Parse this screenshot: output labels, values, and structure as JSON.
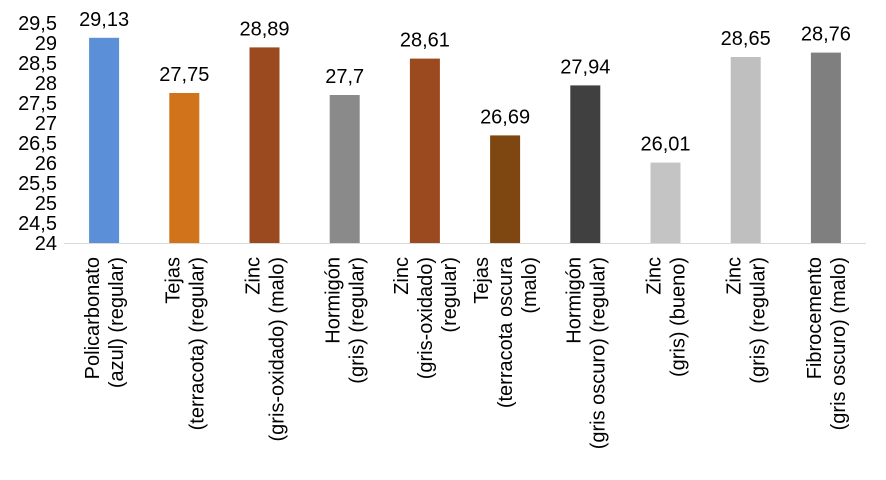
{
  "chart_data": {
    "type": "bar",
    "title": "",
    "xlabel": "",
    "ylabel": "",
    "ylim": [
      24,
      29.5
    ],
    "yticks": [
      "24",
      "24,5",
      "25",
      "25,5",
      "26",
      "26,5",
      "27",
      "27,5",
      "28",
      "28,5",
      "29",
      "29,5"
    ],
    "grid": false,
    "legend": "none",
    "categories": [
      [
        "Policarbonato",
        "(azul) (regular)"
      ],
      [
        "Tejas",
        "(terracota) (regular)"
      ],
      [
        "Zinc",
        "(gris-oxidado) (malo)"
      ],
      [
        "Hormigón",
        "(gris) (regular)"
      ],
      [
        "Zinc",
        "(gris-oxidado)",
        "(regular)"
      ],
      [
        "Tejas",
        "(terracota oscura",
        "(malo)"
      ],
      [
        "Hormigón",
        "(gris oscuro) (regular)"
      ],
      [
        "Zinc",
        "(gris) (bueno)"
      ],
      [
        "Zinc",
        "(gris) (regular)"
      ],
      [
        "Fibrocemento",
        "(gris oscuro) (malo)"
      ]
    ],
    "values": [
      29.13,
      27.75,
      28.89,
      27.7,
      28.61,
      26.69,
      27.94,
      26.01,
      28.65,
      28.76
    ],
    "value_labels": [
      "29,13",
      "27,75",
      "28,89",
      "27,7",
      "28,61",
      "26,69",
      "27,94",
      "26,01",
      "28,65",
      "28,76"
    ],
    "colors": [
      "#5B8FD8",
      "#D0731A",
      "#9A4A1E",
      "#8A8A8A",
      "#9A4A1E",
      "#7E4610",
      "#404040",
      "#C4C4C4",
      "#BFBFBF",
      "#7F7F7F"
    ]
  }
}
